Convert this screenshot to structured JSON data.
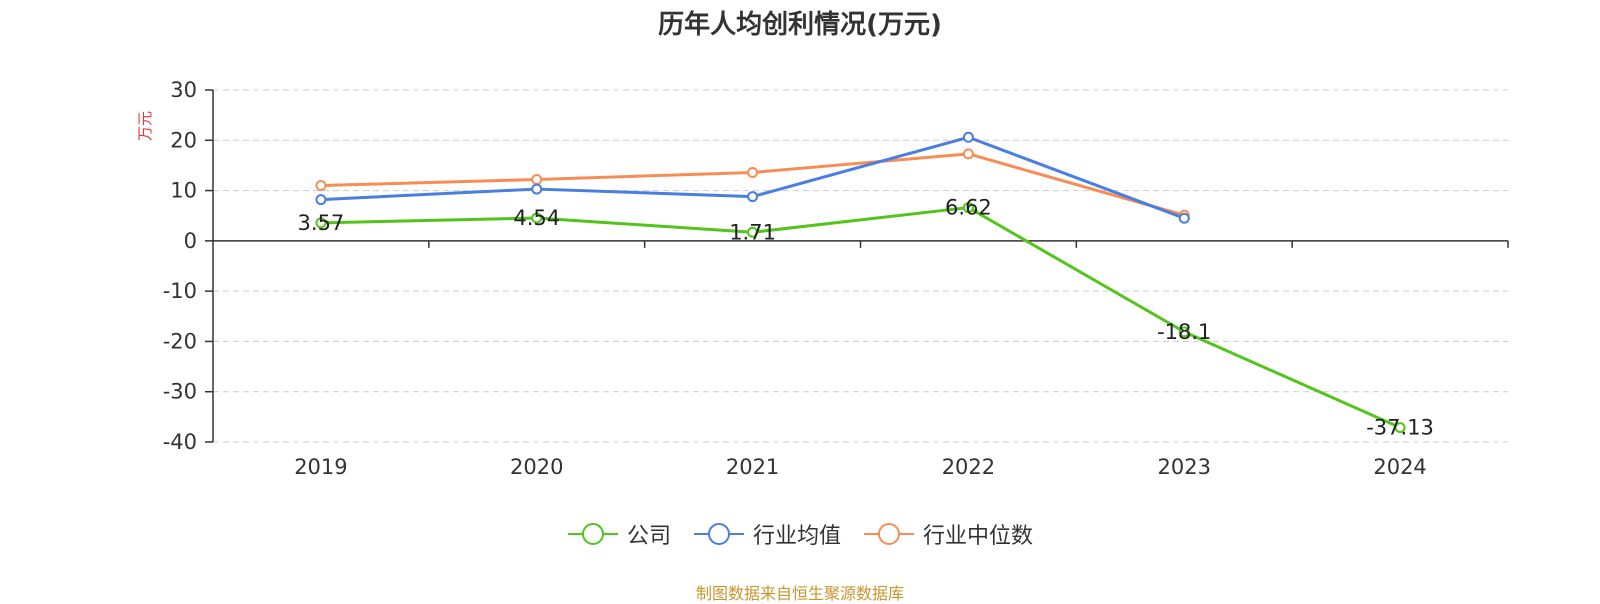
{
  "chart_data": {
    "type": "line",
    "title": "历年人均创利情况(万元)",
    "ylabel": "万元",
    "xlabel": "",
    "categories": [
      "2019",
      "2020",
      "2021",
      "2022",
      "2023",
      "2024"
    ],
    "ylim": [
      -40,
      30
    ],
    "yticks": [
      30,
      20,
      10,
      0,
      -10,
      -20,
      -30,
      -40
    ],
    "grid": true,
    "legend_position": "bottom",
    "series": [
      {
        "name": "公司",
        "color": "#52c41a",
        "values": [
          3.57,
          4.54,
          1.71,
          6.62,
          -18.1,
          -37.13
        ],
        "data_labels": [
          "3.57",
          "4.54",
          "1.71",
          "6.62",
          "-18.1",
          "-37.13"
        ]
      },
      {
        "name": "行业均值",
        "color": "#4a7ee0",
        "values": [
          8.2,
          10.3,
          8.8,
          20.6,
          4.5,
          null
        ]
      },
      {
        "name": "行业中位数",
        "color": "#f78d55",
        "values": [
          11.0,
          12.2,
          13.6,
          17.3,
          5.1,
          null
        ]
      }
    ]
  },
  "footer": {
    "source": "制图数据来自恒生聚源数据库"
  }
}
